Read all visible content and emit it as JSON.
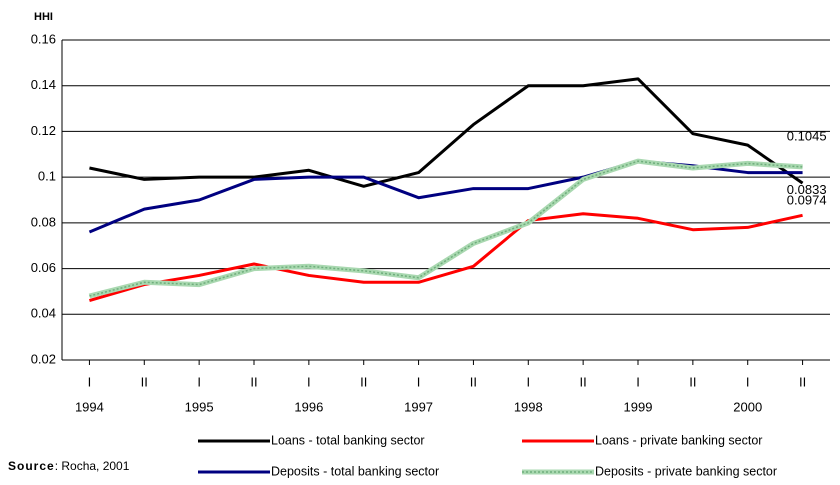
{
  "chart_data": {
    "type": "line",
    "y_axis_label": "HHI",
    "categories": [
      "I",
      "II",
      "I",
      "II",
      "I",
      "II",
      "I",
      "II",
      "I",
      "II",
      "I",
      "II",
      "I",
      "II"
    ],
    "years": [
      "1994",
      "1995",
      "1996",
      "1997",
      "1998",
      "1999",
      "2000"
    ],
    "ylim": [
      0.02,
      0.16
    ],
    "yticks": [
      0.02,
      0.04,
      0.06,
      0.08,
      0.1,
      0.12,
      0.14,
      0.16
    ],
    "grid": true,
    "series": [
      {
        "name": "Loans - total banking sector",
        "color": "#000000",
        "values": [
          0.104,
          0.099,
          0.1,
          0.1,
          0.103,
          0.096,
          0.102,
          0.123,
          0.14,
          0.14,
          0.143,
          0.119,
          0.114,
          0.0974
        ],
        "data_labels": "last"
      },
      {
        "name": "Loans - private banking sector",
        "color": "#ff0000",
        "values": [
          0.046,
          0.053,
          0.057,
          0.062,
          0.057,
          0.054,
          0.054,
          0.061,
          0.081,
          0.084,
          0.082,
          0.077,
          0.078,
          0.0833
        ],
        "data_labels": "last"
      },
      {
        "name": "Deposits - total banking sector",
        "color": "#000080",
        "values": [
          0.076,
          0.086,
          0.09,
          0.099,
          0.1,
          0.1,
          0.091,
          0.095,
          0.095,
          0.1,
          0.107,
          0.105,
          0.102,
          0.102
        ]
      },
      {
        "name": "Deposits - private banking sector",
        "color": "#a9d8b0",
        "values": [
          0.048,
          0.054,
          0.053,
          0.06,
          0.061,
          0.059,
          0.056,
          0.071,
          0.08,
          0.099,
          0.107,
          0.104,
          0.106,
          0.1045
        ],
        "data_labels": "last"
      }
    ],
    "source_label": "Source",
    "source": ": Rocha, 2001"
  }
}
